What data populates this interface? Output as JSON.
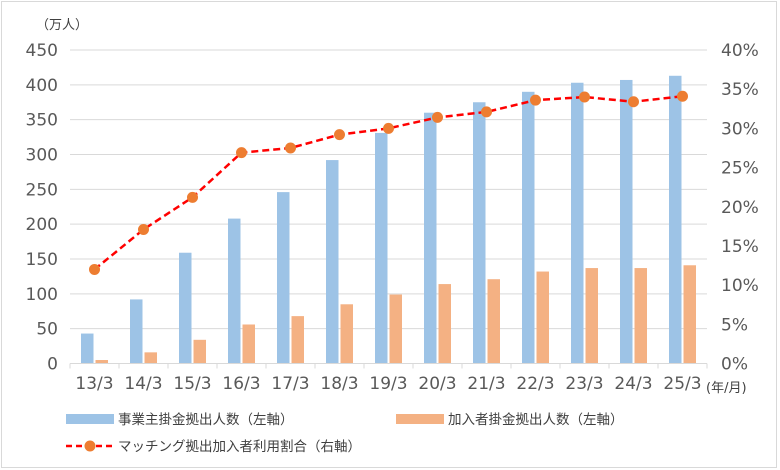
{
  "chart_data": {
    "type": "bar+line",
    "title": "",
    "left_axis_unit": "（万人）",
    "x_axis_unit": "(年/月)",
    "categories": [
      "13/3",
      "14/3",
      "15/3",
      "16/3",
      "17/3",
      "18/3",
      "19/3",
      "20/3",
      "21/3",
      "22/3",
      "23/3",
      "24/3",
      "25/3"
    ],
    "left_axis": {
      "min": 0,
      "max": 450,
      "step": 50,
      "ticks": [
        "0",
        "50",
        "100",
        "150",
        "200",
        "250",
        "300",
        "350",
        "400",
        "450"
      ]
    },
    "right_axis": {
      "min": 0,
      "max": 40,
      "step": 5,
      "ticks": [
        "0%",
        "5%",
        "10%",
        "15%",
        "20%",
        "25%",
        "30%",
        "35%",
        "40%"
      ]
    },
    "series": [
      {
        "name": "事業主掛金拠出人数(左軸)",
        "type": "bar",
        "axis": "left",
        "color": "#9DC3E6",
        "values": [
          43,
          92,
          159,
          208,
          246,
          292,
          331,
          360,
          375,
          390,
          403,
          407,
          413
        ]
      },
      {
        "name": "加入者掛金拠出人数(左軸)",
        "type": "bar",
        "axis": "left",
        "color": "#F4B183",
        "values": [
          5,
          16,
          34,
          56,
          68,
          85,
          99,
          114,
          121,
          132,
          137,
          137,
          141
        ]
      },
      {
        "name": "マッチング拠出加入者利用割合(右軸)",
        "type": "line",
        "axis": "right",
        "color": "#FF0000",
        "marker_color": "#ED7D31",
        "values": [
          12.0,
          17.1,
          21.2,
          26.9,
          27.5,
          29.2,
          30.0,
          31.4,
          32.1,
          33.6,
          34.0,
          33.4,
          34.1
        ]
      }
    ],
    "grid": true,
    "legend_position": "bottom"
  },
  "legend": {
    "items": [
      {
        "label": "事業主掛金拠出人数（左軸）"
      },
      {
        "label": "加入者掛金拠出人数（左軸）"
      },
      {
        "label": "マッチング拠出加入者利用割合（右軸）"
      }
    ]
  }
}
